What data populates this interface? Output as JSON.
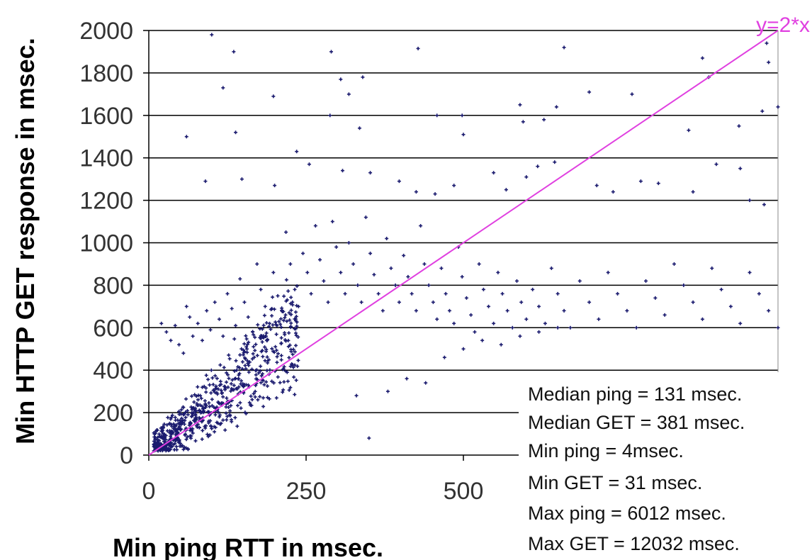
{
  "chart_data": {
    "type": "scatter",
    "xlabel": "Min ping RTT in msec.",
    "ylabel": "Min HTTP GET response in msec.",
    "xlim": [
      0,
      1000
    ],
    "ylim": [
      0,
      2000
    ],
    "x_ticks": [
      "0",
      "250",
      "500"
    ],
    "y_ticks": [
      "0",
      "200",
      "400",
      "600",
      "800",
      "1000",
      "1200",
      "1400",
      "1600",
      "1800",
      "2000"
    ],
    "grid": "horizontal",
    "point_color": "#1a1a6e",
    "reference_line": {
      "label": "y=2*x",
      "slope": 2,
      "color": "#e040e0"
    },
    "stats": [
      "Median ping = 131 msec.",
      "Median GET = 381 msec.",
      "Min ping = 4msec.",
      "Min GET =  31 msec.",
      "Max ping =  6012 msec.",
      "Max GET = 12032 msec."
    ],
    "points": [
      [
        100,
        1980
      ],
      [
        135,
        1900
      ],
      [
        290,
        1900
      ],
      [
        428,
        1915
      ],
      [
        660,
        1920
      ],
      [
        880,
        1870
      ],
      [
        982,
        1940
      ],
      [
        1005,
        1800
      ],
      [
        118,
        1730
      ],
      [
        198,
        1690
      ],
      [
        305,
        1770
      ],
      [
        340,
        1780
      ],
      [
        318,
        1700
      ],
      [
        590,
        1650
      ],
      [
        700,
        1710
      ],
      [
        768,
        1700
      ],
      [
        890,
        1780
      ],
      [
        985,
        1850
      ],
      [
        1002,
        1840
      ],
      [
        1000,
        1640
      ],
      [
        60,
        1500
      ],
      [
        138,
        1520
      ],
      [
        288,
        1600
      ],
      [
        335,
        1540
      ],
      [
        458,
        1600
      ],
      [
        498,
        1600
      ],
      [
        500,
        1510
      ],
      [
        595,
        1570
      ],
      [
        628,
        1580
      ],
      [
        648,
        1640
      ],
      [
        858,
        1530
      ],
      [
        938,
        1550
      ],
      [
        975,
        1620
      ],
      [
        1010,
        1660
      ],
      [
        90,
        1290
      ],
      [
        148,
        1300
      ],
      [
        200,
        1270
      ],
      [
        235,
        1430
      ],
      [
        255,
        1370
      ],
      [
        308,
        1340
      ],
      [
        352,
        1330
      ],
      [
        398,
        1290
      ],
      [
        425,
        1240
      ],
      [
        455,
        1230
      ],
      [
        485,
        1270
      ],
      [
        548,
        1330
      ],
      [
        568,
        1250
      ],
      [
        600,
        1310
      ],
      [
        618,
        1360
      ],
      [
        645,
        1380
      ],
      [
        712,
        1270
      ],
      [
        738,
        1240
      ],
      [
        782,
        1290
      ],
      [
        810,
        1280
      ],
      [
        865,
        1240
      ],
      [
        902,
        1370
      ],
      [
        940,
        1350
      ],
      [
        955,
        1200
      ],
      [
        978,
        1180
      ],
      [
        1010,
        1170
      ],
      [
        20,
        620
      ],
      [
        28,
        580
      ],
      [
        35,
        540
      ],
      [
        42,
        610
      ],
      [
        48,
        520
      ],
      [
        55,
        480
      ],
      [
        60,
        700
      ],
      [
        65,
        650
      ],
      [
        70,
        560
      ],
      [
        78,
        620
      ],
      [
        85,
        540
      ],
      [
        92,
        680
      ],
      [
        98,
        590
      ],
      [
        105,
        720
      ],
      [
        112,
        640
      ],
      [
        118,
        560
      ],
      [
        125,
        760
      ],
      [
        132,
        690
      ],
      [
        138,
        610
      ],
      [
        145,
        830
      ],
      [
        152,
        720
      ],
      [
        158,
        650
      ],
      [
        165,
        580
      ],
      [
        172,
        900
      ],
      [
        178,
        780
      ],
      [
        185,
        700
      ],
      [
        192,
        620
      ],
      [
        198,
        860
      ],
      [
        205,
        750
      ],
      [
        212,
        680
      ],
      [
        218,
        1050
      ],
      [
        225,
        900
      ],
      [
        232,
        780
      ],
      [
        238,
        700
      ],
      [
        245,
        950
      ],
      [
        252,
        860
      ],
      [
        258,
        760
      ],
      [
        265,
        1080
      ],
      [
        272,
        920
      ],
      [
        278,
        820
      ],
      [
        285,
        720
      ],
      [
        292,
        1100
      ],
      [
        298,
        980
      ],
      [
        305,
        860
      ],
      [
        312,
        760
      ],
      [
        318,
        1000
      ],
      [
        325,
        900
      ],
      [
        332,
        800
      ],
      [
        338,
        720
      ],
      [
        345,
        1120
      ],
      [
        352,
        950
      ],
      [
        358,
        850
      ],
      [
        365,
        760
      ],
      [
        372,
        680
      ],
      [
        378,
        1020
      ],
      [
        385,
        880
      ],
      [
        392,
        800
      ],
      [
        398,
        720
      ],
      [
        405,
        940
      ],
      [
        412,
        840
      ],
      [
        418,
        760
      ],
      [
        425,
        680
      ],
      [
        432,
        1080
      ],
      [
        438,
        900
      ],
      [
        445,
        800
      ],
      [
        452,
        720
      ],
      [
        458,
        640
      ],
      [
        465,
        880
      ],
      [
        472,
        760
      ],
      [
        478,
        680
      ],
      [
        485,
        620
      ],
      [
        492,
        980
      ],
      [
        498,
        840
      ],
      [
        505,
        740
      ],
      [
        512,
        660
      ],
      [
        518,
        580
      ],
      [
        525,
        900
      ],
      [
        532,
        780
      ],
      [
        540,
        700
      ],
      [
        548,
        620
      ],
      [
        555,
        860
      ],
      [
        562,
        760
      ],
      [
        570,
        680
      ],
      [
        578,
        600
      ],
      [
        585,
        820
      ],
      [
        592,
        720
      ],
      [
        600,
        640
      ],
      [
        610,
        780
      ],
      [
        620,
        700
      ],
      [
        630,
        620
      ],
      [
        640,
        880
      ],
      [
        650,
        760
      ],
      [
        660,
        680
      ],
      [
        670,
        600
      ],
      [
        685,
        820
      ],
      [
        700,
        720
      ],
      [
        715,
        640
      ],
      [
        730,
        860
      ],
      [
        745,
        760
      ],
      [
        760,
        680
      ],
      [
        775,
        600
      ],
      [
        790,
        820
      ],
      [
        805,
        740
      ],
      [
        820,
        660
      ],
      [
        835,
        900
      ],
      [
        850,
        800
      ],
      [
        865,
        720
      ],
      [
        880,
        640
      ],
      [
        895,
        880
      ],
      [
        910,
        780
      ],
      [
        925,
        700
      ],
      [
        940,
        620
      ],
      [
        955,
        860
      ],
      [
        970,
        760
      ],
      [
        985,
        680
      ],
      [
        1000,
        600
      ],
      [
        350,
        80
      ],
      [
        330,
        280
      ],
      [
        380,
        300
      ],
      [
        410,
        360
      ],
      [
        440,
        340
      ],
      [
        470,
        460
      ],
      [
        500,
        500
      ],
      [
        530,
        540
      ],
      [
        560,
        520
      ],
      [
        590,
        560
      ],
      [
        620,
        580
      ],
      [
        650,
        600
      ]
    ]
  }
}
